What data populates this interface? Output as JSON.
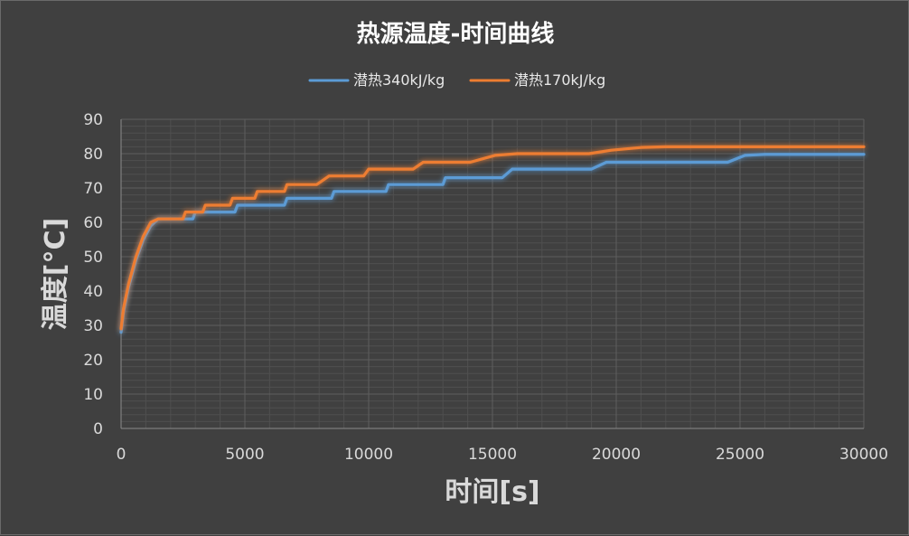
{
  "chart_data": {
    "type": "line",
    "title": "热源温度-时间曲线",
    "xlabel": "时间[s]",
    "ylabel": "温度[°C]",
    "xlim": [
      0,
      30000
    ],
    "ylim": [
      0,
      90
    ],
    "x_ticks": [
      "0",
      "5000",
      "10000",
      "15000",
      "20000",
      "25000",
      "30000"
    ],
    "y_ticks": [
      "0",
      "10",
      "20",
      "30",
      "40",
      "50",
      "60",
      "70",
      "80",
      "90"
    ],
    "grid": true,
    "legend_position": "top",
    "series": [
      {
        "name": "潜热340kJ/kg",
        "color": "#5b9bd5",
        "points": [
          [
            0,
            28
          ],
          [
            100,
            34
          ],
          [
            300,
            41
          ],
          [
            600,
            49
          ],
          [
            900,
            55
          ],
          [
            1200,
            59
          ],
          [
            1500,
            61
          ],
          [
            2900,
            61
          ],
          [
            3000,
            63
          ],
          [
            4600,
            63
          ],
          [
            4700,
            65
          ],
          [
            6600,
            65
          ],
          [
            6700,
            67
          ],
          [
            8500,
            67
          ],
          [
            8600,
            69
          ],
          [
            10700,
            69
          ],
          [
            10800,
            71
          ],
          [
            13000,
            71
          ],
          [
            13100,
            73
          ],
          [
            15400,
            73
          ],
          [
            15800,
            75.5
          ],
          [
            19000,
            75.5
          ],
          [
            19600,
            77.5
          ],
          [
            24500,
            77.5
          ],
          [
            25200,
            79.5
          ],
          [
            26000,
            79.8
          ],
          [
            30000,
            79.8
          ]
        ]
      },
      {
        "name": "潜热170kJ/kg",
        "color": "#ed7d31",
        "points": [
          [
            0,
            29
          ],
          [
            100,
            35
          ],
          [
            300,
            42
          ],
          [
            600,
            50
          ],
          [
            900,
            56
          ],
          [
            1200,
            60
          ],
          [
            1500,
            61
          ],
          [
            2500,
            61
          ],
          [
            2600,
            63
          ],
          [
            3300,
            63
          ],
          [
            3400,
            65
          ],
          [
            4400,
            65
          ],
          [
            4500,
            67
          ],
          [
            5400,
            67
          ],
          [
            5500,
            69
          ],
          [
            6600,
            69
          ],
          [
            6700,
            71
          ],
          [
            7900,
            71
          ],
          [
            8100,
            72
          ],
          [
            8400,
            73.5
          ],
          [
            9800,
            73.5
          ],
          [
            10000,
            75.5
          ],
          [
            11800,
            75.5
          ],
          [
            12200,
            77.5
          ],
          [
            14100,
            77.5
          ],
          [
            15100,
            79.5
          ],
          [
            16000,
            80
          ],
          [
            18900,
            80
          ],
          [
            19800,
            81
          ],
          [
            21000,
            81.8
          ],
          [
            22000,
            82
          ],
          [
            30000,
            82
          ]
        ]
      }
    ]
  }
}
